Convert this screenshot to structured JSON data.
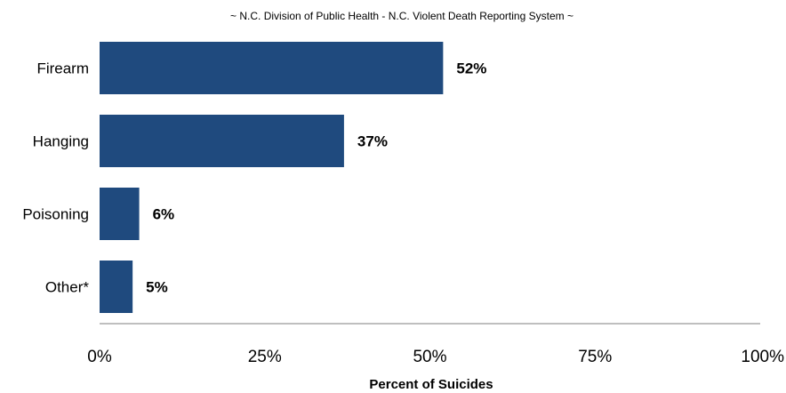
{
  "subtitle": "~ N.C. Division of Public Health - N.C. Violent Death Reporting System ~",
  "colors": {
    "bar": "#1F4A7E",
    "axis": "#7F7F7F"
  },
  "chart_data": {
    "type": "bar",
    "orientation": "horizontal",
    "title": "",
    "xlabel": "Percent of Suicides",
    "ylabel": "",
    "categories": [
      "Firearm",
      "Hanging",
      "Poisoning",
      "Other*"
    ],
    "values": [
      52,
      37,
      6,
      5
    ],
    "value_labels": [
      "52%",
      "37%",
      "6%",
      "5%"
    ],
    "xlim": [
      0,
      100
    ],
    "x_ticks": [
      0,
      25,
      50,
      75,
      100
    ],
    "x_tick_labels": [
      "0%",
      "25%",
      "50%",
      "75%",
      "100%"
    ],
    "grid": false,
    "legend": "none"
  }
}
